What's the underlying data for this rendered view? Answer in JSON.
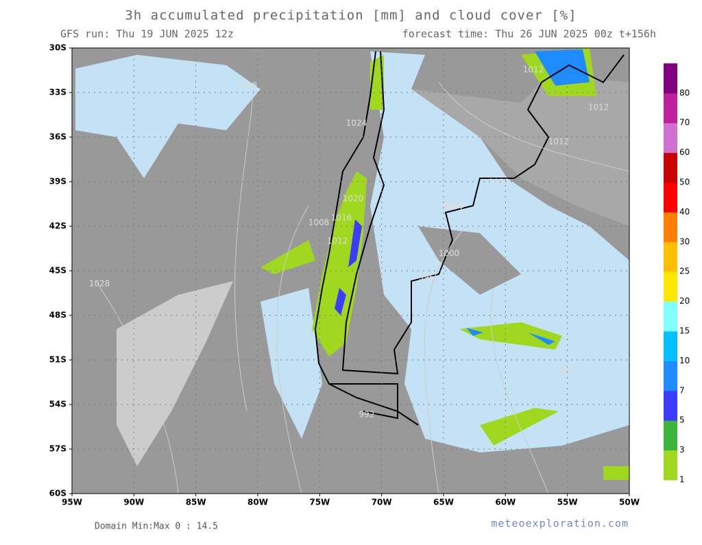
{
  "header": {
    "title": "3h accumulated precipitation [mm] and cloud cover [%]",
    "run": "GFS run: Thu 19 JUN 2025 12z",
    "forecast": "forecast time: Thu 26 JUN 2025 00z  t+156h"
  },
  "axes": {
    "lat": [
      "30S",
      "33S",
      "36S",
      "39S",
      "42S",
      "45S",
      "48S",
      "51S",
      "54S",
      "57S",
      "60S"
    ],
    "lon": [
      "95W",
      "90W",
      "85W",
      "80W",
      "75W",
      "70W",
      "65W",
      "60W",
      "55W",
      "50W"
    ]
  },
  "legend": {
    "labels": [
      1,
      3,
      5,
      7,
      10,
      15,
      20,
      25,
      30,
      40,
      50,
      60,
      70,
      80
    ],
    "colors": [
      "#a0d820",
      "#3cb43c",
      "#3c3cff",
      "#1e8cff",
      "#00c0ff",
      "#80ffff",
      "#ffe800",
      "#ffc000",
      "#ff8000",
      "#ff0000",
      "#c80000",
      "#d070d0",
      "#c020a0",
      "#800080"
    ]
  },
  "isobars": [
    "1028",
    "1028",
    "1024",
    "1020",
    "1016",
    "1012",
    "1008",
    "1004",
    "1000",
    "996",
    "992",
    "988",
    "1012",
    "1012",
    "1012",
    "1012",
    "1008"
  ],
  "footer": {
    "minmax": "Domain Min:Max 0 : 14.5",
    "site": "meteoexploration.com"
  }
}
